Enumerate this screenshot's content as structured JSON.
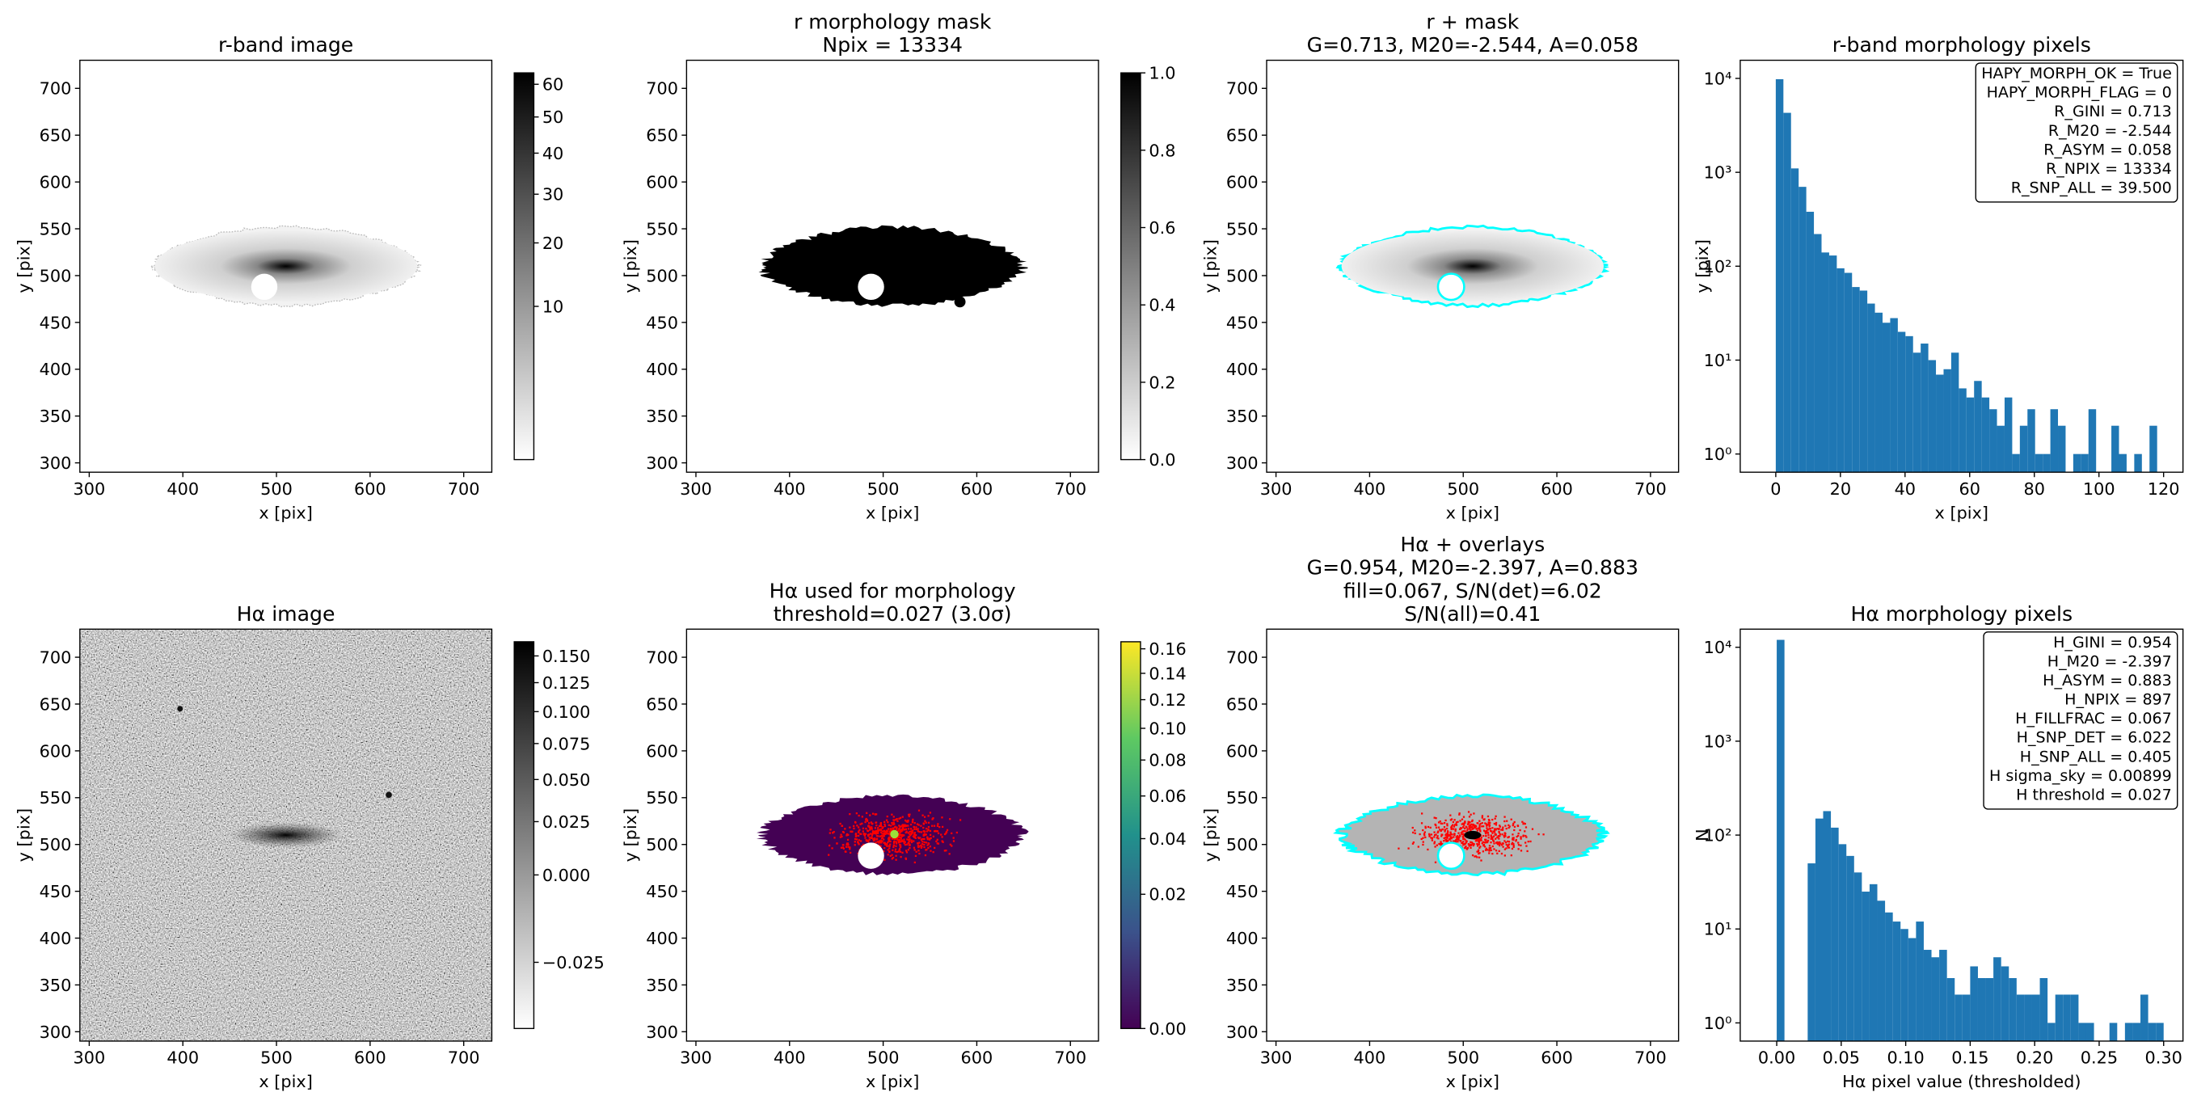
{
  "chart_data": [
    {
      "type": "image",
      "title": "r-band image",
      "xlabel": "x [pix]",
      "ylabel": "y [pix]",
      "xlim": [
        290,
        730
      ],
      "ylim": [
        290,
        730
      ],
      "xticks": [
        300,
        400,
        500,
        600,
        700
      ],
      "yticks": [
        300,
        350,
        400,
        450,
        500,
        550,
        600,
        650,
        700
      ],
      "colorbar": {
        "cmap": "gray_r",
        "scale": "sqrt",
        "lim": [
          0,
          63.7
        ],
        "ticks": [
          10,
          20,
          30,
          40,
          50,
          60
        ]
      }
    },
    {
      "type": "image",
      "title": [
        "r morphology mask",
        "Npix = 13334"
      ],
      "xlabel": "x [pix]",
      "ylabel": "y [pix]",
      "xlim": [
        290,
        730
      ],
      "ylim": [
        290,
        730
      ],
      "xticks": [
        300,
        400,
        500,
        600,
        700
      ],
      "yticks": [
        300,
        350,
        400,
        450,
        500,
        550,
        600,
        650,
        700
      ],
      "colorbar": {
        "cmap": "gray_r",
        "scale": "linear",
        "lim": [
          0,
          1
        ],
        "ticks": [
          {
            "value": 0,
            "label": "0.0"
          },
          {
            "value": 0.2,
            "label": "0.2"
          },
          {
            "value": 0.4,
            "label": "0.4"
          },
          {
            "value": 0.6,
            "label": "0.6"
          },
          {
            "value": 0.8,
            "label": "0.8"
          },
          {
            "value": 1,
            "label": "1.0"
          }
        ]
      }
    },
    {
      "type": "image",
      "title": [
        "r + mask",
        "G=0.713, M20=-2.544, A=0.058"
      ],
      "xlabel": "x [pix]",
      "ylabel": "y [pix]",
      "xlim": [
        290,
        730
      ],
      "ylim": [
        290,
        730
      ],
      "xticks": [
        300,
        400,
        500,
        600,
        700
      ],
      "yticks": [
        300,
        350,
        400,
        450,
        500,
        550,
        600,
        650,
        700
      ],
      "contour_color": "#00ffff"
    },
    {
      "type": "histogram",
      "title": "r-band morphology pixels",
      "xlabel": "x [pix]",
      "ylabel": "y [pix]",
      "color": "#1f77b4",
      "log_y": true,
      "bins": [
        0,
        2.36,
        4.72,
        7.08,
        9.44,
        11.8,
        14.16,
        16.52,
        18.88,
        21.24,
        23.6,
        25.96,
        28.32,
        30.68,
        33.04,
        35.4,
        37.76,
        40.12,
        42.48,
        44.84,
        47.2,
        49.56,
        51.92,
        54.28,
        56.64,
        59,
        61.36,
        63.72,
        66.08,
        68.44,
        70.8,
        73.16,
        75.52,
        77.88,
        80.24,
        82.6,
        84.96,
        87.32,
        89.68,
        92.04,
        94.4,
        96.76,
        99.12,
        101.48,
        103.84,
        106.2,
        108.56,
        110.92,
        113.28,
        115.64,
        118
      ],
      "counts": [
        9800,
        4300,
        1100,
        700,
        380,
        220,
        140,
        130,
        95,
        85,
        60,
        55,
        40,
        32,
        25,
        28,
        20,
        18,
        12,
        15,
        10,
        7,
        8,
        12,
        5,
        4,
        6,
        4,
        3,
        2,
        4,
        1,
        2,
        3,
        1,
        1,
        3,
        2,
        0,
        1,
        1,
        3,
        0,
        0,
        2,
        1,
        0,
        1,
        0,
        2
      ],
      "xlim": [
        -11,
        126
      ],
      "ylim": [
        0.64,
        15600
      ],
      "xticks": [
        0,
        20,
        40,
        60,
        80,
        100,
        120
      ],
      "yticks": [
        {
          "value": 1,
          "label": "10⁰"
        },
        {
          "value": 10,
          "label": "10¹"
        },
        {
          "value": 100,
          "label": "10²"
        },
        {
          "value": 1000,
          "label": "10³"
        },
        {
          "value": 10000,
          "label": "10⁴"
        }
      ],
      "annotations": [
        "HAPY_MORPH_OK = True",
        "HAPY_MORPH_FLAG = 0",
        "R_GINI = 0.713",
        "R_M20 = -2.544",
        "R_ASYM = 0.058",
        "R_NPIX = 13334",
        "R_SNP_ALL = 39.500"
      ]
    },
    {
      "type": "image",
      "title": "Hα image",
      "xlabel": "x [pix]",
      "ylabel": "y [pix]",
      "xlim": [
        290,
        730
      ],
      "ylim": [
        290,
        730
      ],
      "xticks": [
        300,
        400,
        500,
        600,
        700
      ],
      "yticks": [
        300,
        350,
        400,
        450,
        500,
        550,
        600,
        650,
        700
      ],
      "colorbar": {
        "cmap": "gray_r",
        "scale": "sqrt",
        "lim": [
          -0.0307,
          0.164
        ],
        "ticks": [
          {
            "value": -0.025,
            "label": "−0.025"
          },
          {
            "value": 0,
            "label": "0.000"
          },
          {
            "value": 0.025,
            "label": "0.025"
          },
          {
            "value": 0.05,
            "label": "0.050"
          },
          {
            "value": 0.075,
            "label": "0.075"
          },
          {
            "value": 0.1,
            "label": "0.100"
          },
          {
            "value": 0.125,
            "label": "0.125"
          },
          {
            "value": 0.15,
            "label": "0.150"
          }
        ]
      }
    },
    {
      "type": "image",
      "title": [
        "Hα used for morphology",
        "threshold=0.027 (3.0σ)"
      ],
      "xlabel": "x [pix]",
      "ylabel": "y [pix]",
      "xlim": [
        290,
        730
      ],
      "ylim": [
        290,
        730
      ],
      "xticks": [
        300,
        400,
        500,
        600,
        700
      ],
      "yticks": [
        300,
        350,
        400,
        450,
        500,
        550,
        600,
        650,
        700
      ],
      "marker_color": "#ff0000",
      "colorbar": {
        "cmap": "viridis",
        "scale": "sqrt",
        "lim": [
          0,
          0.166
        ],
        "ticks": [
          {
            "value": 0,
            "label": "0.00"
          },
          {
            "value": 0.02,
            "label": "0.02"
          },
          {
            "value": 0.04,
            "label": "0.04"
          },
          {
            "value": 0.06,
            "label": "0.06"
          },
          {
            "value": 0.08,
            "label": "0.08"
          },
          {
            "value": 0.1,
            "label": "0.10"
          },
          {
            "value": 0.12,
            "label": "0.12"
          },
          {
            "value": 0.14,
            "label": "0.14"
          },
          {
            "value": 0.16,
            "label": "0.16"
          }
        ]
      }
    },
    {
      "type": "image",
      "title": [
        "Hα + overlays",
        "G=0.954, M20=-2.397, A=0.883",
        "fill=0.067, S/N(det)=6.02",
        "S/N(all)=0.41"
      ],
      "xlabel": "x [pix]",
      "ylabel": "y [pix]",
      "xlim": [
        290,
        730
      ],
      "ylim": [
        290,
        730
      ],
      "xticks": [
        300,
        400,
        500,
        600,
        700
      ],
      "yticks": [
        300,
        350,
        400,
        450,
        500,
        550,
        600,
        650,
        700
      ],
      "contour_color": "#00ffff",
      "marker_color": "#ff0000"
    },
    {
      "type": "histogram",
      "title": "Hα morphology pixels",
      "xlabel": "Hα pixel value (thresholded)",
      "ylabel": "N",
      "color": "#1f77b4",
      "log_y": true,
      "bins": [
        0,
        0.006,
        0.012,
        0.018,
        0.024,
        0.03,
        0.036,
        0.042,
        0.048,
        0.054,
        0.06,
        0.066,
        0.072,
        0.078,
        0.084,
        0.09,
        0.096,
        0.102,
        0.108,
        0.114,
        0.12,
        0.126,
        0.132,
        0.138,
        0.144,
        0.15,
        0.156,
        0.162,
        0.168,
        0.174,
        0.18,
        0.186,
        0.192,
        0.198,
        0.204,
        0.21,
        0.216,
        0.222,
        0.228,
        0.234,
        0.24,
        0.246,
        0.252,
        0.258,
        0.264,
        0.27,
        0.276,
        0.282,
        0.288,
        0.294,
        0.3
      ],
      "counts": [
        12000,
        0,
        0,
        0,
        50,
        150,
        180,
        120,
        80,
        60,
        40,
        25,
        30,
        20,
        15,
        12,
        10,
        8,
        12,
        6,
        5,
        6,
        3,
        2,
        2,
        4,
        3,
        3,
        5,
        4,
        3,
        2,
        2,
        2,
        3,
        1,
        2,
        2,
        2,
        1,
        1,
        0,
        0,
        1,
        0,
        1,
        1,
        2,
        1,
        1
      ],
      "xlim": [
        -0.0283,
        0.315
      ],
      "ylim": [
        0.64,
        15600
      ],
      "xticks": [
        {
          "value": 0,
          "label": "0.00"
        },
        {
          "value": 0.05,
          "label": "0.05"
        },
        {
          "value": 0.1,
          "label": "0.10"
        },
        {
          "value": 0.15,
          "label": "0.15"
        },
        {
          "value": 0.2,
          "label": "0.20"
        },
        {
          "value": 0.25,
          "label": "0.25"
        },
        {
          "value": 0.3,
          "label": "0.30"
        }
      ],
      "yticks": [
        {
          "value": 1,
          "label": "10⁰"
        },
        {
          "value": 10,
          "label": "10¹"
        },
        {
          "value": 100,
          "label": "10²"
        },
        {
          "value": 1000,
          "label": "10³"
        },
        {
          "value": 10000,
          "label": "10⁴"
        }
      ],
      "annotations": [
        "H_GINI = 0.954",
        "H_M20 = -2.397",
        "H_ASYM = 0.883",
        "H_NPIX = 897",
        "H_FILLFRAC = 0.067",
        "H_SNP_DET = 6.022",
        "H_SNP_ALL = 0.405",
        "H sigma_sky = 0.00899",
        "H threshold = 0.027"
      ]
    }
  ]
}
